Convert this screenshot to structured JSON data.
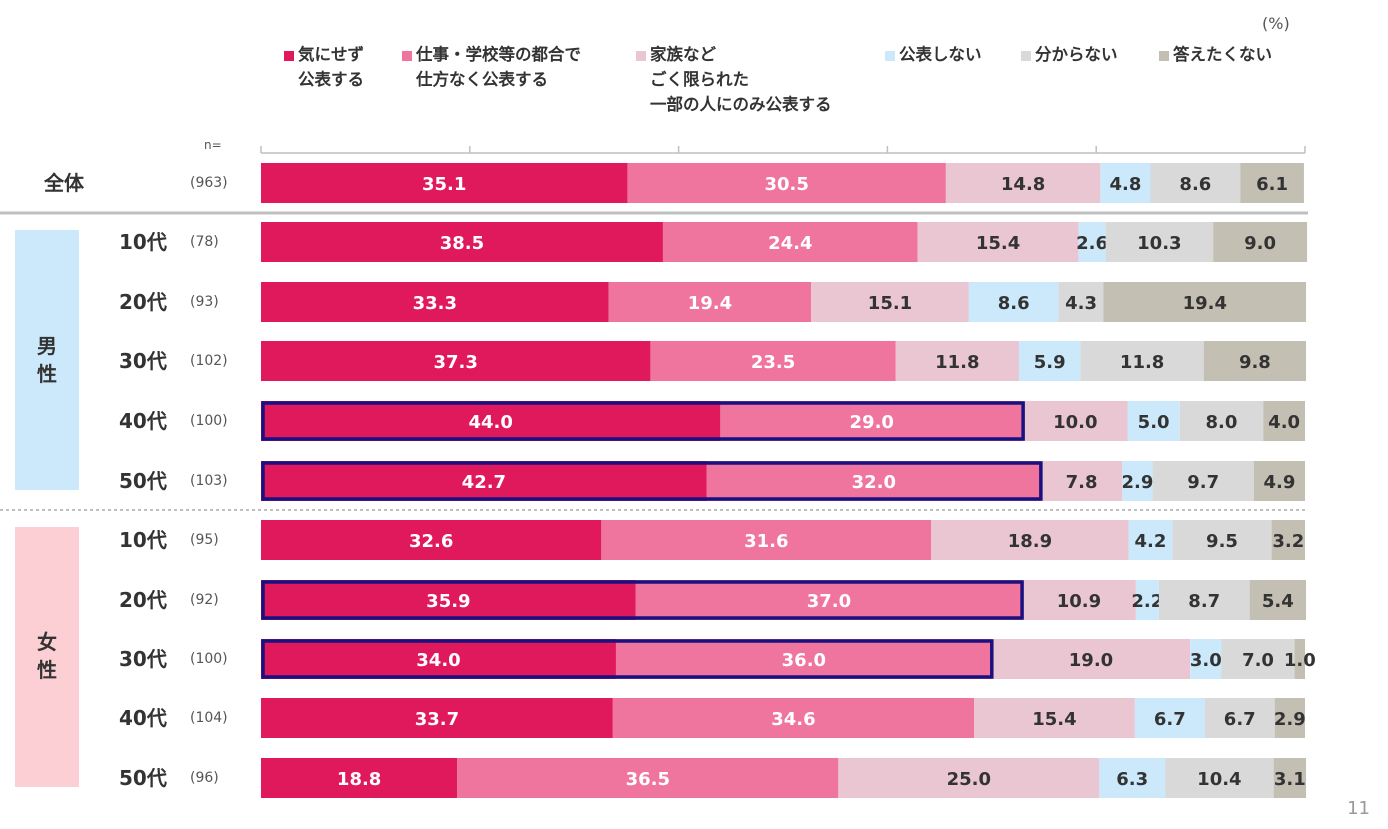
{
  "unit_label": "(%)",
  "n_header": "n=",
  "page_number": "11",
  "groups": [
    {
      "key": "male",
      "label": "男\n性",
      "color": "#cbe9fa"
    },
    {
      "key": "female",
      "label": "女\n性",
      "color": "#fccfd4"
    }
  ],
  "chart_data": {
    "type": "bar",
    "orientation": "horizontal",
    "stacked": true,
    "title": "",
    "xlim": [
      0,
      100
    ],
    "unit": "%",
    "categories": [
      "全体",
      "男性 10代",
      "男性 20代",
      "男性 30代",
      "男性 40代",
      "男性 50代",
      "女性 10代",
      "女性 20代",
      "女性 30代",
      "女性 40代",
      "女性 50代"
    ],
    "row_labels": [
      "全体",
      "10代",
      "20代",
      "30代",
      "40代",
      "50代",
      "10代",
      "20代",
      "30代",
      "40代",
      "50代"
    ],
    "n_labels": [
      "(963)",
      "(78)",
      "(93)",
      "(102)",
      "(100)",
      "(103)",
      "(95)",
      "(92)",
      "(100)",
      "(104)",
      "(96)"
    ],
    "series": [
      {
        "name": "気にせず\n公表する",
        "color": "#e0185c",
        "text_color": "#ffffff",
        "values": [
          35.1,
          38.5,
          33.3,
          37.3,
          44.0,
          42.7,
          32.6,
          35.9,
          34.0,
          33.7,
          18.8
        ]
      },
      {
        "name": "仕事・学校等の都合で\n仕方なく公表する",
        "color": "#f0759e",
        "text_color": "#ffffff",
        "values": [
          30.5,
          24.4,
          19.4,
          23.5,
          29.0,
          32.0,
          31.6,
          37.0,
          36.0,
          34.6,
          36.5
        ]
      },
      {
        "name": "家族など\nごく限られた\n一部の人にのみ公表する",
        "color": "#e9c6d2",
        "text_color": "#333333",
        "values": [
          14.8,
          15.4,
          15.1,
          11.8,
          10.0,
          7.8,
          18.9,
          10.9,
          19.0,
          15.4,
          25.0
        ]
      },
      {
        "name": "公表しない",
        "color": "#cbe9fa",
        "text_color": "#333333",
        "values": [
          4.8,
          2.6,
          8.6,
          5.9,
          5.0,
          2.9,
          4.2,
          2.2,
          3.0,
          6.7,
          6.3
        ]
      },
      {
        "name": "分からない",
        "color": "#d9d9d9",
        "text_color": "#333333",
        "values": [
          8.6,
          10.3,
          4.3,
          11.8,
          8.0,
          9.7,
          9.5,
          8.7,
          7.0,
          6.7,
          10.4
        ]
      },
      {
        "name": "答えたくない",
        "color": "#c4bfb3",
        "text_color": "#333333",
        "values": [
          6.1,
          9.0,
          19.4,
          9.8,
          4.0,
          4.9,
          3.2,
          5.4,
          1.0,
          2.9,
          3.1
        ]
      }
    ],
    "highlighted_rows": [
      4,
      5,
      7,
      8
    ],
    "highlight_series": [
      0,
      1
    ],
    "highlight_color": "#1a1080"
  }
}
